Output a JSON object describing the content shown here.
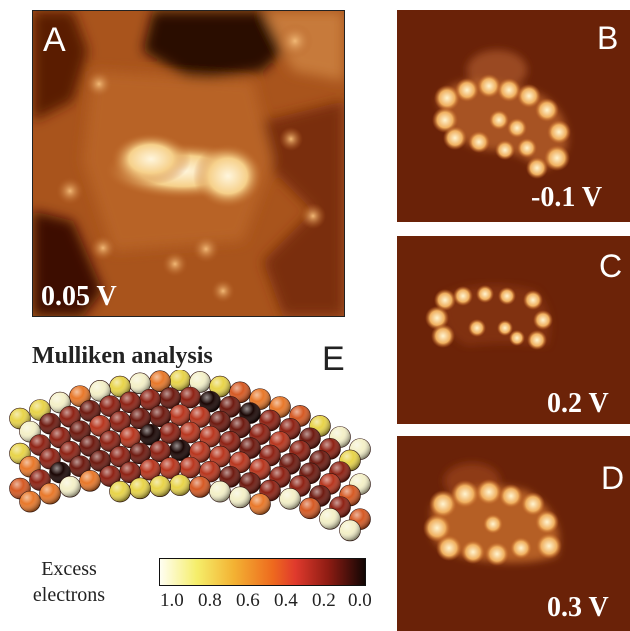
{
  "panels": {
    "a": {
      "letter": "A",
      "voltage": "0.05 V"
    },
    "b": {
      "letter": "B",
      "voltage": "-0.1 V"
    },
    "c": {
      "letter": "C",
      "voltage": "0.2 V"
    },
    "d": {
      "letter": "D",
      "voltage": "0.3 V"
    }
  },
  "mulliken": {
    "title": "Mulliken analysis",
    "letter": "E",
    "legend_line1": "Excess",
    "legend_line2": "electrons",
    "ticks": [
      "1.0",
      "0.8",
      "0.6",
      "0.4",
      "0.2",
      "0.0"
    ]
  },
  "colors": {
    "stm_dark": "#4a1404",
    "stm_mid": "#a9541c",
    "stm_bright": "#fff1c8",
    "scale_high": "#fffef2",
    "scale_low": "#120604"
  }
}
